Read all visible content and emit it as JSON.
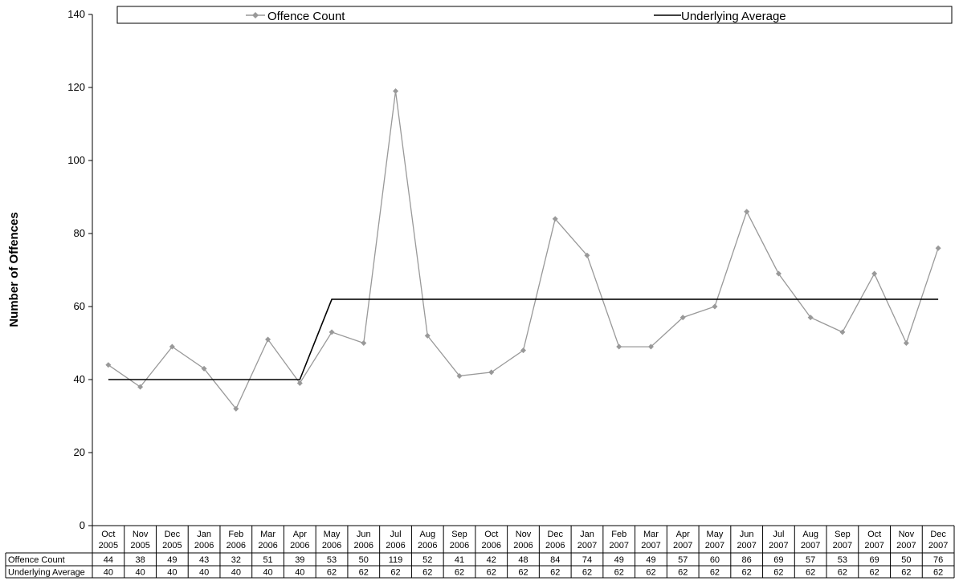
{
  "chart_data": {
    "type": "line",
    "title": "",
    "ylabel": "Number of Offences",
    "xlabel": "",
    "ylim": [
      0,
      140
    ],
    "yticks": [
      0,
      20,
      40,
      60,
      80,
      100,
      120,
      140
    ],
    "grid": false,
    "legend_position": "top",
    "categories": [
      [
        "Oct",
        "2005"
      ],
      [
        "Nov",
        "2005"
      ],
      [
        "Dec",
        "2005"
      ],
      [
        "Jan",
        "2006"
      ],
      [
        "Feb",
        "2006"
      ],
      [
        "Mar",
        "2006"
      ],
      [
        "Apr",
        "2006"
      ],
      [
        "May",
        "2006"
      ],
      [
        "Jun",
        "2006"
      ],
      [
        "Jul",
        "2006"
      ],
      [
        "Aug",
        "2006"
      ],
      [
        "Sep",
        "2006"
      ],
      [
        "Oct",
        "2006"
      ],
      [
        "Nov",
        "2006"
      ],
      [
        "Dec",
        "2006"
      ],
      [
        "Jan",
        "2007"
      ],
      [
        "Feb",
        "2007"
      ],
      [
        "Mar",
        "2007"
      ],
      [
        "Apr",
        "2007"
      ],
      [
        "May",
        "2007"
      ],
      [
        "Jun",
        "2007"
      ],
      [
        "Jul",
        "2007"
      ],
      [
        "Aug",
        "2007"
      ],
      [
        "Sep",
        "2007"
      ],
      [
        "Oct",
        "2007"
      ],
      [
        "Nov",
        "2007"
      ],
      [
        "Dec",
        "2007"
      ]
    ],
    "series": [
      {
        "name": "Offence Count",
        "color": "#999999",
        "marker": "diamond",
        "values": [
          44,
          38,
          49,
          43,
          32,
          51,
          39,
          53,
          50,
          119,
          52,
          41,
          42,
          48,
          84,
          74,
          49,
          49,
          57,
          60,
          86,
          69,
          57,
          53,
          69,
          50,
          76
        ]
      },
      {
        "name": "Underlying Average",
        "color": "#000000",
        "marker": "none",
        "values": [
          40,
          40,
          40,
          40,
          40,
          40,
          40,
          62,
          62,
          62,
          62,
          62,
          62,
          62,
          62,
          62,
          62,
          62,
          62,
          62,
          62,
          62,
          62,
          62,
          62,
          62,
          62
        ]
      }
    ]
  }
}
